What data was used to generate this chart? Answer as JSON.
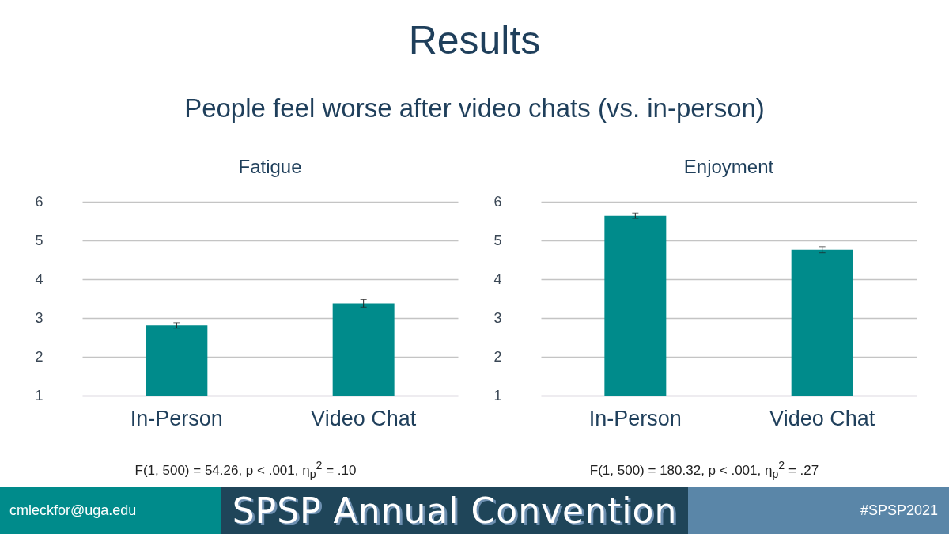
{
  "chart_data": [
    {
      "type": "other",
      "title": "Results",
      "subtitle": "People feel worse after video chats (vs. in-person)"
    },
    {
      "type": "bar",
      "title": "Fatigue",
      "categories": [
        "In-Person",
        "Video Chat"
      ],
      "values": [
        2.81,
        3.38
      ],
      "errors": [
        0.07,
        0.1
      ],
      "color": "#008b8b",
      "ylim": [
        1,
        6
      ],
      "yticks": [
        1,
        2,
        3,
        4,
        5,
        6
      ],
      "grid": "y",
      "annotations": [
        "F(1, 500) = 54.26, p < .001, η$_{p}$$^{2}$ = .10"
      ]
    },
    {
      "type": "bar",
      "title": "Enjoyment",
      "categories": [
        "In-Person",
        "Video Chat"
      ],
      "values": [
        5.64,
        4.76
      ],
      "errors": [
        0.07,
        0.08
      ],
      "color": "#008b8b",
      "ylim": [
        1,
        6
      ],
      "yticks": [
        1,
        2,
        3,
        4,
        5,
        6
      ],
      "grid": "y",
      "annotations": [
        "F(1, 500) = 180.32, p < .001, η$_{p}$$^{2}$ = .27"
      ]
    },
    {
      "type": "other",
      "annotations": [
        "cmleckfor@uga.edu",
        "SPSP Annual Convention",
        "#SPSP2021"
      ]
    }
  ]
}
